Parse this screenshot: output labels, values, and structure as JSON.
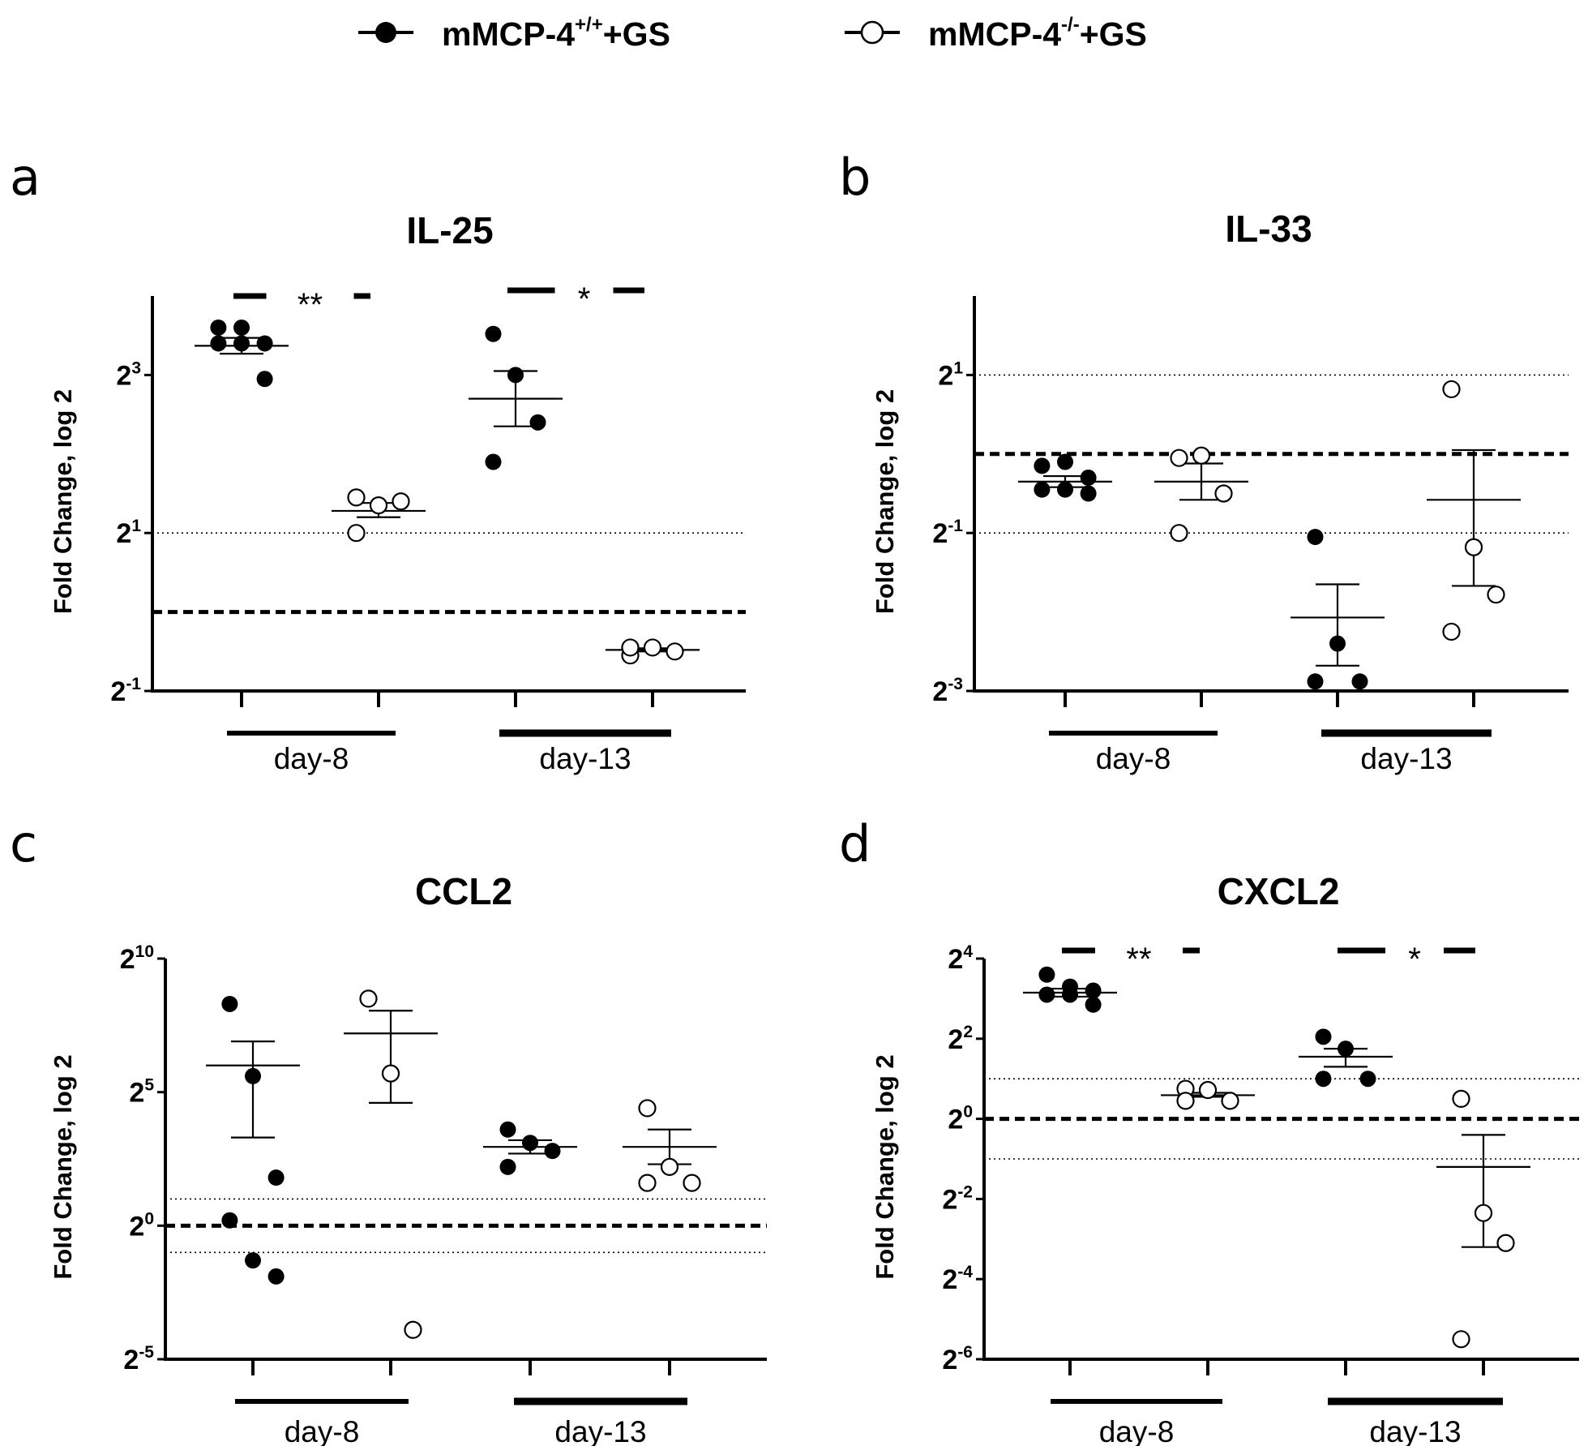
{
  "legend": {
    "series": [
      {
        "base": "mMCP-4",
        "sup": "+/+",
        "suffix": "+GS",
        "marker": "filled"
      },
      {
        "base": "mMCP-4",
        "sup": "-/-",
        "suffix": "+GS",
        "marker": "open"
      }
    ]
  },
  "colors": {
    "ink": "#000000",
    "background": "#ffffff"
  },
  "chart_data": [
    {
      "panel": "a",
      "type": "scatter",
      "title": "IL-25",
      "ylabel": "Fold Change, log 2",
      "yscale": "log2",
      "ylim_exp": [
        -1,
        4.0
      ],
      "yticks_exp": [
        -1,
        1,
        3
      ],
      "baseline_exp": 0,
      "dotted_exp": [
        1
      ],
      "groups": [
        "day-8",
        "day-13"
      ],
      "columns": [
        {
          "series": 0,
          "points_exp": [
            3.6,
            3.6,
            3.4,
            3.4,
            3.4,
            2.95
          ],
          "mean_exp": 3.37,
          "sem_exp": [
            3.27,
            3.47
          ]
        },
        {
          "series": 1,
          "points_exp": [
            1.45,
            1.35,
            1.4,
            1.0
          ],
          "mean_exp": 1.28,
          "sem_exp": [
            1.2,
            1.38
          ]
        },
        {
          "series": 0,
          "points_exp": [
            3.52,
            3.0,
            2.4,
            1.9
          ],
          "mean_exp": 2.7,
          "sem_exp": [
            2.35,
            3.05
          ]
        },
        {
          "series": 1,
          "points_exp": [
            -0.55,
            -0.45,
            -0.5,
            -0.45
          ],
          "mean_exp": -0.48,
          "sem_exp": [
            -0.5,
            -0.46
          ]
        }
      ],
      "significance": [
        {
          "label": "**",
          "pair": [
            0,
            1
          ]
        },
        {
          "label": "*",
          "pair": [
            2,
            3
          ]
        }
      ]
    },
    {
      "panel": "b",
      "type": "scatter",
      "title": "IL-33",
      "ylabel": "Fold Change, log 2",
      "yscale": "log2",
      "ylim_exp": [
        -3,
        2.0
      ],
      "yticks_exp": [
        -3,
        -1,
        1
      ],
      "baseline_exp": 0,
      "dotted_exp": [
        -1,
        1
      ],
      "groups": [
        "day-8",
        "day-13"
      ],
      "columns": [
        {
          "series": 0,
          "points_exp": [
            -0.15,
            -0.1,
            -0.3,
            -0.45,
            -0.45,
            -0.5
          ],
          "mean_exp": -0.35,
          "sem_exp": [
            -0.42,
            -0.28
          ]
        },
        {
          "series": 1,
          "points_exp": [
            -0.05,
            -0.02,
            -0.5,
            -1.0
          ],
          "mean_exp": -0.35,
          "sem_exp": [
            -0.58,
            -0.12
          ]
        },
        {
          "series": 0,
          "points_exp": [
            -1.05,
            -2.4,
            -2.88,
            -2.88
          ],
          "mean_exp": -2.07,
          "sem_exp": [
            -2.68,
            -1.65
          ]
        },
        {
          "series": 1,
          "points_exp": [
            0.82,
            -1.18,
            -1.78,
            -2.25
          ],
          "mean_exp": -0.58,
          "sem_exp": [
            -1.67,
            0.05
          ]
        }
      ],
      "significance": []
    },
    {
      "panel": "c",
      "type": "scatter",
      "title": "CCL2",
      "ylabel": "Fold Change, log 2",
      "yscale": "log2",
      "ylim_exp": [
        -5,
        10
      ],
      "yticks_exp": [
        -5,
        0,
        5,
        10
      ],
      "baseline_exp": 0,
      "dotted_exp": [
        1,
        -1
      ],
      "groups": [
        "day-8",
        "day-13"
      ],
      "columns": [
        {
          "series": 0,
          "points_exp": [
            8.3,
            5.6,
            1.8,
            0.2,
            -1.3,
            -1.9
          ],
          "mean_exp": 6.0,
          "sem_exp": [
            3.3,
            6.9
          ]
        },
        {
          "series": 1,
          "points_exp": [
            8.5,
            5.7,
            -3.9
          ],
          "mean_exp": 7.2,
          "sem_exp": [
            4.6,
            8.05
          ]
        },
        {
          "series": 0,
          "points_exp": [
            3.6,
            3.1,
            2.8,
            2.2
          ],
          "mean_exp": 2.95,
          "sem_exp": [
            2.7,
            3.2
          ]
        },
        {
          "series": 1,
          "points_exp": [
            4.4,
            2.2,
            1.6,
            1.6
          ],
          "mean_exp": 2.95,
          "sem_exp": [
            2.3,
            3.6
          ]
        }
      ],
      "significance": []
    },
    {
      "panel": "d",
      "type": "scatter",
      "title": "CXCL2",
      "ylabel": "Fold Change, log 2",
      "yscale": "log2",
      "ylim_exp": [
        -6,
        4
      ],
      "yticks_exp": [
        -6,
        -4,
        -2,
        0,
        2,
        4
      ],
      "baseline_exp": 0,
      "dotted_exp": [
        1,
        -1
      ],
      "groups": [
        "day-8",
        "day-13"
      ],
      "columns": [
        {
          "series": 0,
          "points_exp": [
            3.6,
            3.3,
            3.2,
            3.1,
            3.1,
            2.85
          ],
          "mean_exp": 3.15,
          "sem_exp": [
            3.05,
            3.25
          ]
        },
        {
          "series": 1,
          "points_exp": [
            0.75,
            0.72,
            0.45,
            0.45
          ],
          "mean_exp": 0.59,
          "sem_exp": [
            0.55,
            0.65
          ]
        },
        {
          "series": 0,
          "points_exp": [
            2.05,
            1.75,
            1.0,
            1.0
          ],
          "mean_exp": 1.55,
          "sem_exp": [
            1.3,
            1.75
          ]
        },
        {
          "series": 1,
          "points_exp": [
            0.5,
            -2.35,
            -3.1,
            -5.5
          ],
          "mean_exp": -1.2,
          "sem_exp": [
            -3.2,
            -0.4
          ]
        }
      ],
      "significance": [
        {
          "label": "**",
          "pair": [
            0,
            1
          ]
        },
        {
          "label": "*",
          "pair": [
            2,
            3
          ]
        }
      ]
    }
  ]
}
